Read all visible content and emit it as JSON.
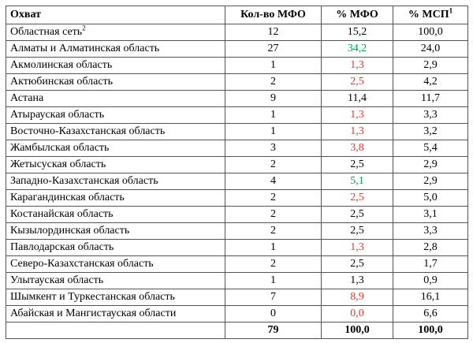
{
  "colors": {
    "positive": "#00a44f",
    "negative": "#ee3428",
    "text": "#000000",
    "border": "#545454",
    "background": "#ffffff"
  },
  "table": {
    "columns": [
      "Охват",
      "Кол-во МФО",
      "% МФО",
      "% МСП"
    ],
    "header_sup": "1",
    "rows": [
      {
        "region": "Областная сеть",
        "region_sup": "2",
        "count": "12",
        "pct_mfo": "15,2",
        "mfo_class": "",
        "pct_msp": "100,0"
      },
      {
        "region": "Алматы и Алматинская область",
        "count": "27",
        "pct_mfo": "34,2",
        "mfo_class": "pos",
        "pct_msp": "24,0"
      },
      {
        "region": "Акмолинская область",
        "count": "1",
        "pct_mfo": "1,3",
        "mfo_class": "neg",
        "pct_msp": "2,9"
      },
      {
        "region": "Актюбинская область",
        "count": "2",
        "pct_mfo": "2,5",
        "mfo_class": "neg",
        "pct_msp": "4,2"
      },
      {
        "region": "Астана",
        "count": "9",
        "pct_mfo": "11,4",
        "mfo_class": "",
        "pct_msp": "11,7"
      },
      {
        "region": "Атырауская область",
        "count": "1",
        "pct_mfo": "1,3",
        "mfo_class": "neg",
        "pct_msp": "3,3"
      },
      {
        "region": "Восточно-Казахстанская область",
        "count": "1",
        "pct_mfo": "1,3",
        "mfo_class": "neg",
        "pct_msp": "3,2"
      },
      {
        "region": "Жамбылская область",
        "count": "3",
        "pct_mfo": "3,8",
        "mfo_class": "neg",
        "pct_msp": "5,4"
      },
      {
        "region": "Жетысуская область",
        "count": "2",
        "pct_mfo": "2,5",
        "mfo_class": "",
        "pct_msp": "2,9"
      },
      {
        "region": "Западно-Казахстанская область",
        "count": "4",
        "pct_mfo": "5,1",
        "mfo_class": "pos",
        "pct_msp": "2,9"
      },
      {
        "region": "Карагандинская область",
        "count": "2",
        "pct_mfo": "2,5",
        "mfo_class": "neg",
        "pct_msp": "5,0"
      },
      {
        "region": "Костанайская область",
        "count": "2",
        "pct_mfo": "2,5",
        "mfo_class": "",
        "pct_msp": "3,1"
      },
      {
        "region": "Кызылординская область",
        "count": "2",
        "pct_mfo": "2,5",
        "mfo_class": "",
        "pct_msp": "3,3"
      },
      {
        "region": "Павлодарская область",
        "count": "1",
        "pct_mfo": "1,3",
        "mfo_class": "neg",
        "pct_msp": "2,8"
      },
      {
        "region": "Северо-Казахстанская область",
        "count": "2",
        "pct_mfo": "2,5",
        "mfo_class": "",
        "pct_msp": "1,7"
      },
      {
        "region": "Улытауская область",
        "count": "1",
        "pct_mfo": "1,3",
        "mfo_class": "",
        "pct_msp": "0,9"
      },
      {
        "region": "Шымкент и Туркестанская область",
        "count": "7",
        "pct_mfo": "8,9",
        "mfo_class": "neg",
        "pct_msp": "16,1"
      },
      {
        "region": "Абайская и Мангистауская области",
        "count": "0",
        "pct_mfo": "0,0",
        "mfo_class": "neg",
        "pct_msp": "6,6"
      }
    ],
    "total": {
      "region": "",
      "count": "79",
      "pct_mfo": "100,0",
      "pct_msp": "100,0"
    }
  }
}
